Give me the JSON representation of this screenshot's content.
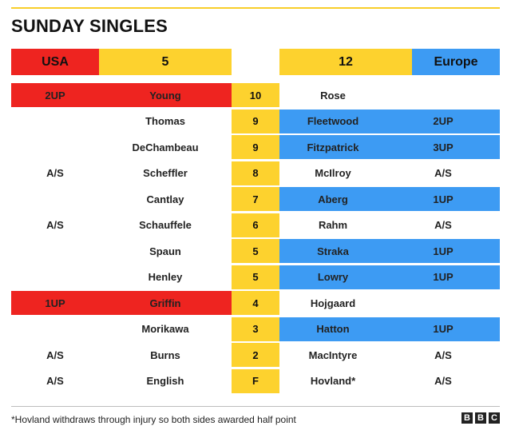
{
  "title": "SUNDAY SINGLES",
  "header": {
    "usa_label": "USA",
    "usa_score": "5",
    "europe_score": "12",
    "europe_label": "Europe"
  },
  "colors": {
    "usa": "#ee2420",
    "score": "#fdd22e",
    "europe": "#3d9bf3"
  },
  "matches": [
    {
      "usa_result": "2UP",
      "usa_player": "Young",
      "match": "10",
      "eur_player": "Rose",
      "eur_result": "",
      "winner": "usa"
    },
    {
      "usa_result": "",
      "usa_player": "Thomas",
      "match": "9",
      "eur_player": "Fleetwood",
      "eur_result": "2UP",
      "winner": "europe"
    },
    {
      "usa_result": "",
      "usa_player": "DeChambeau",
      "match": "9",
      "eur_player": "Fitzpatrick",
      "eur_result": "3UP",
      "winner": "europe"
    },
    {
      "usa_result": "A/S",
      "usa_player": "Scheffler",
      "match": "8",
      "eur_player": "McIlroy",
      "eur_result": "A/S",
      "winner": "none"
    },
    {
      "usa_result": "",
      "usa_player": "Cantlay",
      "match": "7",
      "eur_player": "Aberg",
      "eur_result": "1UP",
      "winner": "europe"
    },
    {
      "usa_result": "A/S",
      "usa_player": "Schauffele",
      "match": "6",
      "eur_player": "Rahm",
      "eur_result": "A/S",
      "winner": "none"
    },
    {
      "usa_result": "",
      "usa_player": "Spaun",
      "match": "5",
      "eur_player": "Straka",
      "eur_result": "1UP",
      "winner": "europe"
    },
    {
      "usa_result": "",
      "usa_player": "Henley",
      "match": "5",
      "eur_player": "Lowry",
      "eur_result": "1UP",
      "winner": "europe"
    },
    {
      "usa_result": "1UP",
      "usa_player": "Griffin",
      "match": "4",
      "eur_player": "Hojgaard",
      "eur_result": "",
      "winner": "usa"
    },
    {
      "usa_result": "",
      "usa_player": "Morikawa",
      "match": "3",
      "eur_player": "Hatton",
      "eur_result": "1UP",
      "winner": "europe"
    },
    {
      "usa_result": "A/S",
      "usa_player": "Burns",
      "match": "2",
      "eur_player": "MacIntyre",
      "eur_result": "A/S",
      "winner": "none"
    },
    {
      "usa_result": "A/S",
      "usa_player": "English",
      "match": "F",
      "eur_player": "Hovland*",
      "eur_result": "A/S",
      "winner": "none"
    }
  ],
  "footnote": "*Hovland withdraws through injury so both sides awarded half point",
  "logo": {
    "b1": "B",
    "b2": "B",
    "c": "C"
  }
}
